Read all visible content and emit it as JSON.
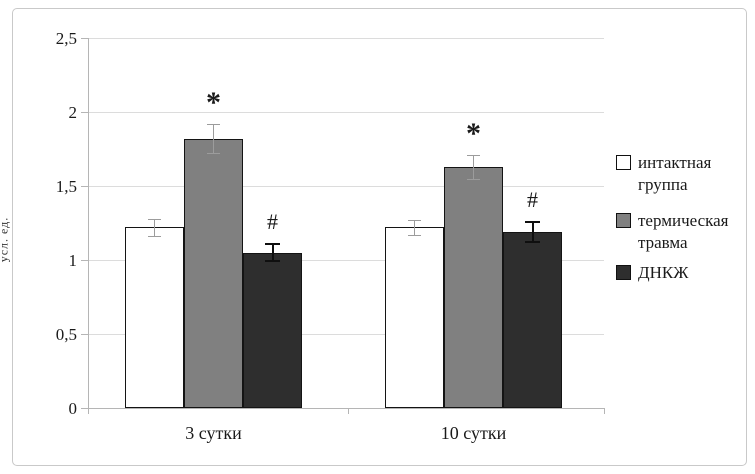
{
  "figure": {
    "y_axis_label": "усл. ед.",
    "y_tick_labels": [
      "0",
      "0,5",
      "1",
      "1,5",
      "2",
      "2,5"
    ]
  },
  "legend": {
    "items": [
      {
        "label": "интактная группа",
        "color": "#ffffff"
      },
      {
        "label": "термическая травма",
        "color": "#808080"
      },
      {
        "label": "ДНКЖ",
        "color": "#2e2e2e"
      }
    ]
  },
  "chart_data": {
    "type": "bar",
    "title": "",
    "xlabel": "",
    "ylabel": "усл. ед.",
    "categories": [
      "3 сутки",
      "10 сутки"
    ],
    "series": [
      {
        "name": "интактная группа",
        "color": "#ffffff",
        "values": [
          1.22,
          1.22
        ],
        "errors": [
          0.06,
          0.05
        ],
        "annotations": [
          "",
          ""
        ]
      },
      {
        "name": "термическая травма",
        "color": "#808080",
        "values": [
          1.82,
          1.63
        ],
        "errors": [
          0.1,
          0.08
        ],
        "annotations": [
          "*",
          "*"
        ]
      },
      {
        "name": "ДНКЖ",
        "color": "#2e2e2e",
        "values": [
          1.05,
          1.19
        ],
        "errors": [
          0.06,
          0.07
        ],
        "annotations": [
          "#",
          "#"
        ]
      }
    ],
    "ylim": [
      0,
      2.5
    ],
    "y_ticks": [
      0,
      0.5,
      1,
      1.5,
      2,
      2.5
    ],
    "grid": true,
    "legend_position": "right",
    "error_bars": true,
    "decimal_separator": ","
  }
}
